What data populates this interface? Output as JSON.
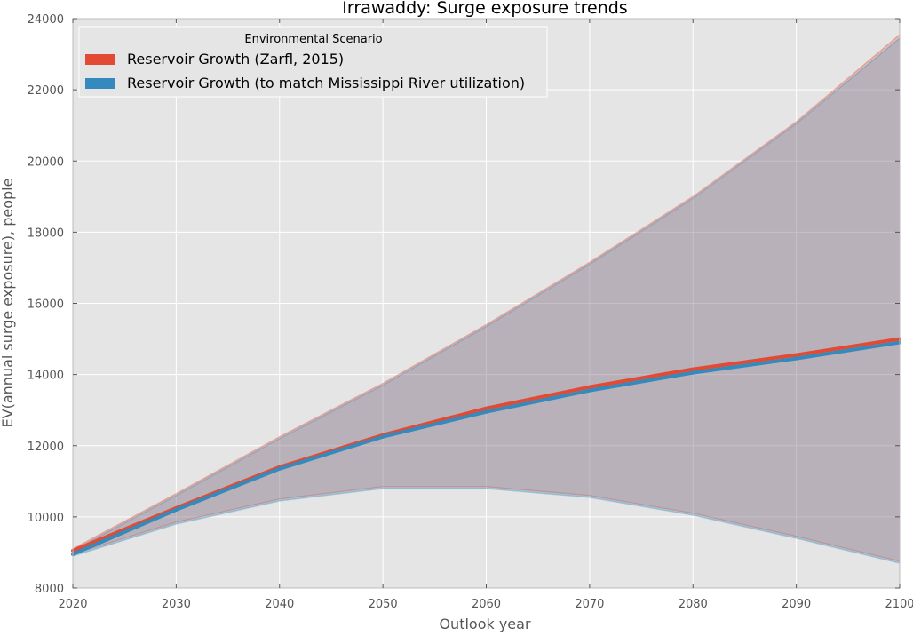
{
  "chart_data": {
    "type": "area",
    "title": "Irrawaddy: Surge exposure trends",
    "xlabel": "Outlook year",
    "ylabel": "EV(annual surge exposure), people",
    "xlim": [
      2020,
      2100
    ],
    "ylim": [
      8000,
      24000
    ],
    "x_ticks": [
      2020,
      2030,
      2040,
      2050,
      2060,
      2070,
      2080,
      2090,
      2100
    ],
    "y_ticks": [
      8000,
      10000,
      12000,
      14000,
      16000,
      18000,
      20000,
      22000,
      24000
    ],
    "grid": true,
    "legend": {
      "title": "Environmental Scenario",
      "placement": "upper-left"
    },
    "x": [
      2020,
      2030,
      2040,
      2050,
      2060,
      2070,
      2080,
      2090,
      2100
    ],
    "series": [
      {
        "name": "Reservoir Growth (Zarfl, 2015)",
        "color": "#E24A33",
        "values": [
          9050,
          10250,
          11400,
          12300,
          13050,
          13650,
          14150,
          14550,
          15000
        ],
        "upper": [
          9100,
          10650,
          12250,
          13750,
          15400,
          17150,
          19000,
          21100,
          23550
        ],
        "lower": [
          8950,
          9850,
          10500,
          10850,
          10850,
          10600,
          10100,
          9450,
          8750
        ]
      },
      {
        "name": "Reservoir Growth (to match Mississippi River utilization)",
        "color": "#348ABD",
        "values": [
          8950,
          10200,
          11350,
          12250,
          12950,
          13550,
          14050,
          14450,
          14900
        ],
        "upper": [
          9050,
          10600,
          12200,
          13700,
          15350,
          17100,
          18950,
          21050,
          23450
        ],
        "lower": [
          8900,
          9800,
          10450,
          10800,
          10800,
          10550,
          10050,
          9400,
          8700
        ]
      }
    ]
  }
}
